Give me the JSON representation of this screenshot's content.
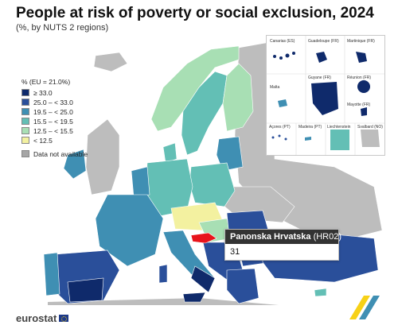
{
  "header": {
    "title": "People at risk of poverty or social exclusion, 2024",
    "subtitle": "(%, by NUTS 2 regions)"
  },
  "legend": {
    "title": "% (EU = 21.0%)",
    "items": [
      {
        "label": "≥ 33.0",
        "color": "#0f2a6b"
      },
      {
        "label": "25.0 – < 33.0",
        "color": "#2a4f9a"
      },
      {
        "label": "19.5 – < 25.0",
        "color": "#3f8fb3"
      },
      {
        "label": "15.5 – < 19.5",
        "color": "#63bfb5"
      },
      {
        "label": "12.5 – < 15.5",
        "color": "#a8dfb4"
      },
      {
        "label": "< 12.5",
        "color": "#f3f1a0"
      }
    ],
    "not_available": {
      "label": "Data not available",
      "color": "#a6a6a6"
    }
  },
  "insets": {
    "labels": [
      "Canarias (ES)",
      "Guadeloupe (FR)",
      "Martinique (FR)",
      "Réunion (FR)",
      "Malta",
      "Guyane (FR)",
      "Mayotte (FR)",
      "Açores (PT)",
      "Madeira (PT)",
      "Liechtenstein",
      "Svalbard (NO)"
    ]
  },
  "tooltip": {
    "region": "Panonska Hrvatska",
    "code": "(HR02)",
    "value": "31"
  },
  "footer": {
    "logo_text": "eurostat"
  }
}
